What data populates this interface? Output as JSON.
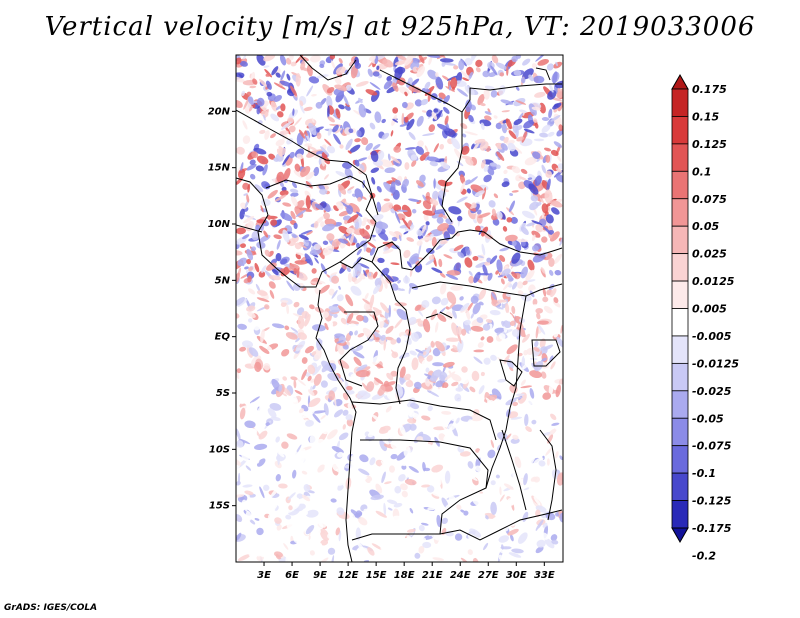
{
  "title": "Vertical velocity [m/s] at 925hPa, VT: 2019033006",
  "credit": "GrADS: IGES/COLA",
  "map": {
    "lat_labels": [
      "20N",
      "15N",
      "10N",
      "5N",
      "EQ",
      "5S",
      "10S",
      "15S"
    ],
    "lat_values": [
      20,
      15,
      10,
      5,
      0,
      -5,
      -10,
      -15
    ],
    "lon_labels": [
      "3E",
      "6E",
      "9E",
      "12E",
      "15E",
      "18E",
      "21E",
      "24E",
      "27E",
      "30E",
      "33E"
    ],
    "lon_values": [
      3,
      6,
      9,
      12,
      15,
      18,
      21,
      24,
      27,
      30,
      33
    ],
    "lon_range": [
      0,
      35
    ],
    "lat_range": [
      -20,
      25
    ]
  },
  "colorbar": {
    "labels": [
      "0.175",
      "0.15",
      "0.125",
      "0.1",
      "0.075",
      "0.05",
      "0.025",
      "0.0125",
      "0.005",
      "-0.005",
      "-0.0125",
      "-0.025",
      "-0.05",
      "-0.075",
      "-0.1",
      "-0.125",
      "-0.175",
      "-0.2"
    ],
    "colors": [
      "#b01818",
      "#c52525",
      "#d83a3a",
      "#e25555",
      "#ea7474",
      "#f19696",
      "#f6b7b7",
      "#fad3d3",
      "#fdeaea",
      "#ffffff",
      "#e4e4fa",
      "#c9c9f5",
      "#aaaaef",
      "#8b8be7",
      "#6a6add",
      "#4848cc",
      "#2a2ab8",
      "#12129a"
    ]
  }
}
